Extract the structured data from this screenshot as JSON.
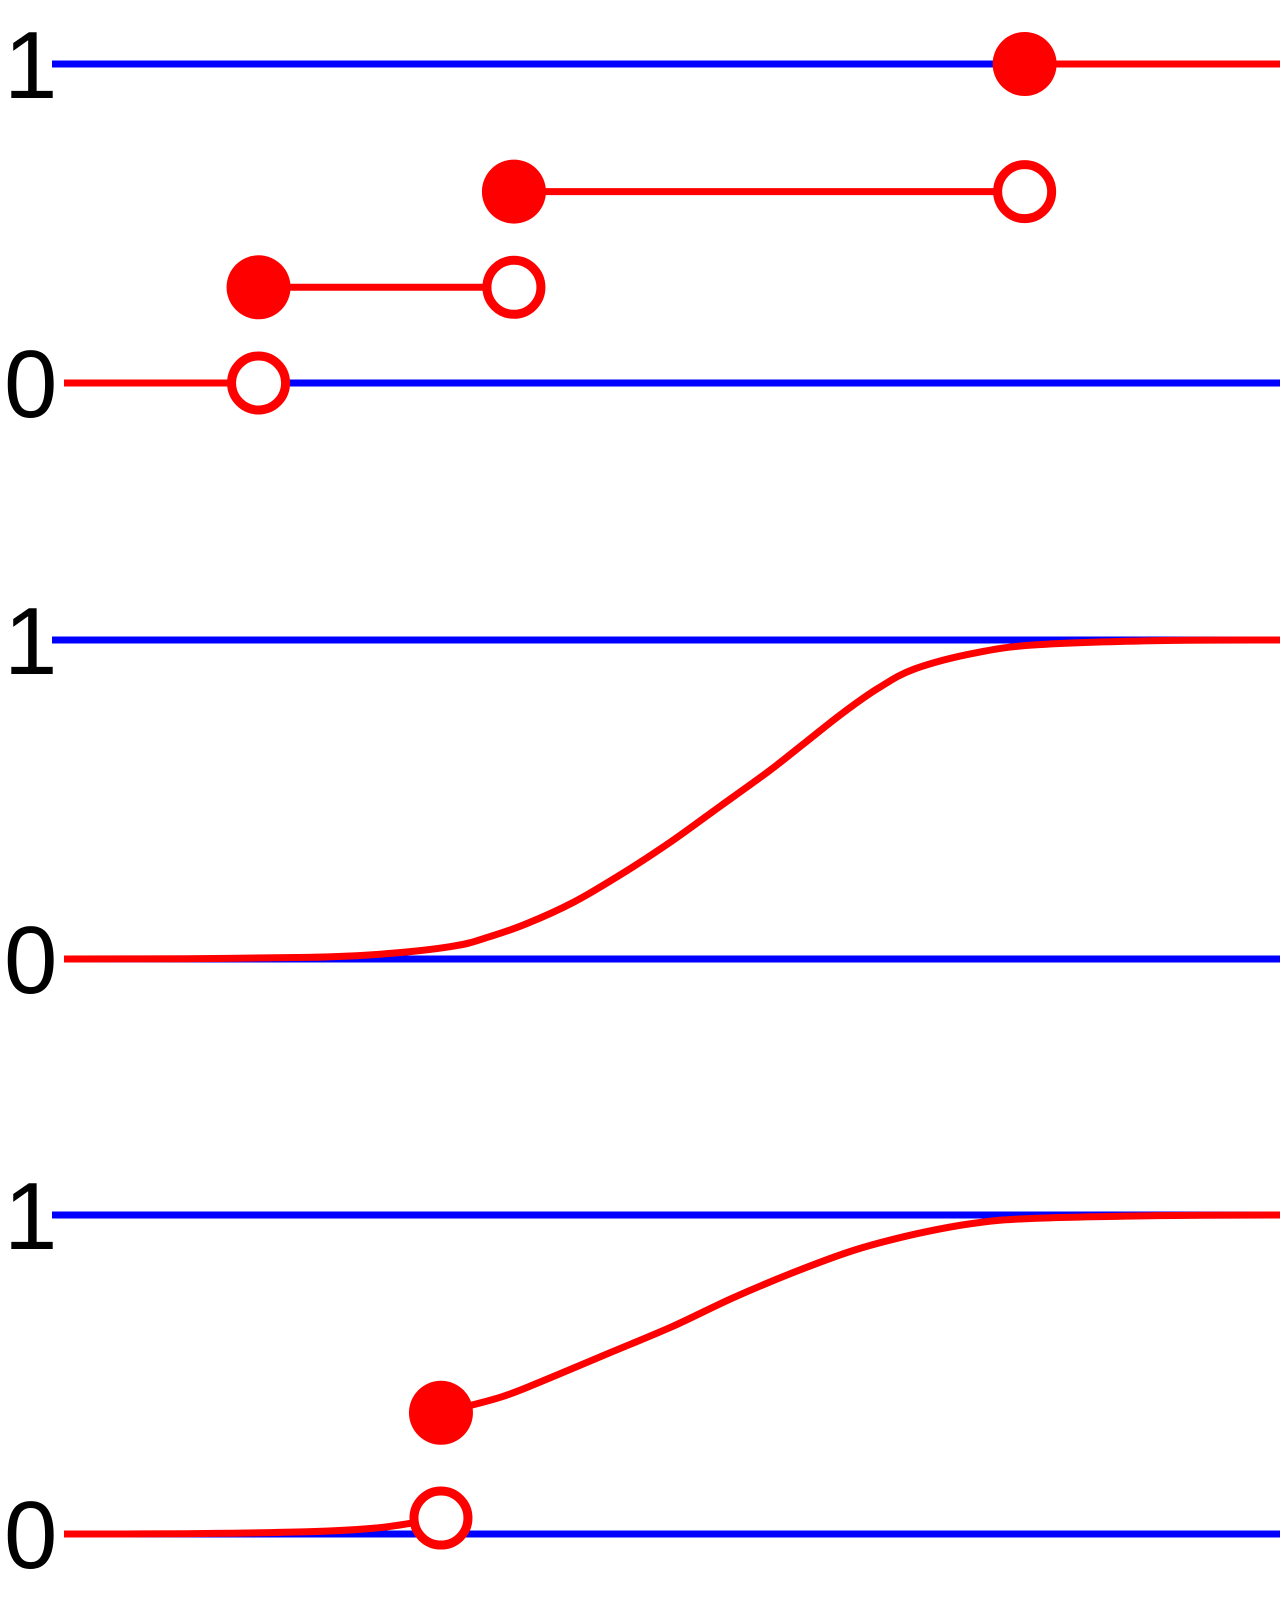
{
  "colors": {
    "reference": "#0000ff",
    "series": "#ff0000",
    "text": "#000000",
    "background": "#ffffff"
  },
  "chart_data": [
    {
      "type": "line",
      "subtype": "step",
      "title": "",
      "xlabel": "",
      "ylabel": "",
      "xlim": [
        0,
        1
      ],
      "ylim": [
        0,
        1
      ],
      "yticks": [
        "0",
        "1"
      ],
      "reference_lines": [
        0,
        1
      ],
      "segments": [
        {
          "x": [
            0.0,
            0.16
          ],
          "y": [
            0,
            0
          ]
        },
        {
          "x": [
            0.16,
            0.37
          ],
          "y": [
            0.3,
            0.3
          ]
        },
        {
          "x": [
            0.37,
            0.79
          ],
          "y": [
            0.6,
            0.6
          ]
        },
        {
          "x": [
            0.79,
            1.0
          ],
          "y": [
            1,
            1
          ]
        }
      ],
      "closed_points": [
        {
          "x": 0.16,
          "y": 0.3
        },
        {
          "x": 0.37,
          "y": 0.6
        },
        {
          "x": 0.79,
          "y": 1
        }
      ],
      "open_points": [
        {
          "x": 0.16,
          "y": 0
        },
        {
          "x": 0.37,
          "y": 0.3
        },
        {
          "x": 0.79,
          "y": 0.6
        }
      ]
    },
    {
      "type": "line",
      "subtype": "curve",
      "title": "",
      "xlabel": "",
      "ylabel": "",
      "xlim": [
        0,
        1
      ],
      "ylim": [
        0,
        1
      ],
      "yticks": [
        "0",
        "1"
      ],
      "reference_lines": [
        0,
        1
      ],
      "curves": [
        {
          "x": [
            0.0,
            0.1,
            0.2,
            0.26,
            0.32,
            0.35,
            0.38,
            0.42,
            0.46,
            0.5,
            0.54,
            0.58,
            0.61,
            0.64,
            0.67,
            0.7,
            0.75,
            0.8,
            0.9,
            1.0
          ],
          "y": [
            0.0,
            0.001,
            0.005,
            0.015,
            0.04,
            0.07,
            0.11,
            0.18,
            0.27,
            0.37,
            0.48,
            0.59,
            0.68,
            0.77,
            0.85,
            0.91,
            0.96,
            0.985,
            0.998,
            1.0
          ]
        }
      ],
      "closed_points": [],
      "open_points": []
    },
    {
      "type": "line",
      "subtype": "curve-with-jump",
      "title": "",
      "xlabel": "",
      "ylabel": "",
      "xlim": [
        0,
        1
      ],
      "ylim": [
        0,
        1
      ],
      "yticks": [
        "0",
        "1"
      ],
      "reference_lines": [
        0,
        1
      ],
      "curves": [
        {
          "x": [
            0.0,
            0.1,
            0.2,
            0.26,
            0.31
          ],
          "y": [
            0.0,
            0.001,
            0.007,
            0.02,
            0.05
          ]
        },
        {
          "x": [
            0.31,
            0.36,
            0.4,
            0.45,
            0.5,
            0.55,
            0.6,
            0.65,
            0.7,
            0.75,
            0.8,
            0.9,
            1.0
          ],
          "y": [
            0.38,
            0.43,
            0.49,
            0.57,
            0.65,
            0.74,
            0.82,
            0.89,
            0.94,
            0.975,
            0.99,
            0.998,
            1.0
          ]
        }
      ],
      "closed_points": [
        {
          "x": 0.31,
          "y": 0.38
        }
      ],
      "open_points": [
        {
          "x": 0.31,
          "y": 0.05
        }
      ]
    }
  ]
}
